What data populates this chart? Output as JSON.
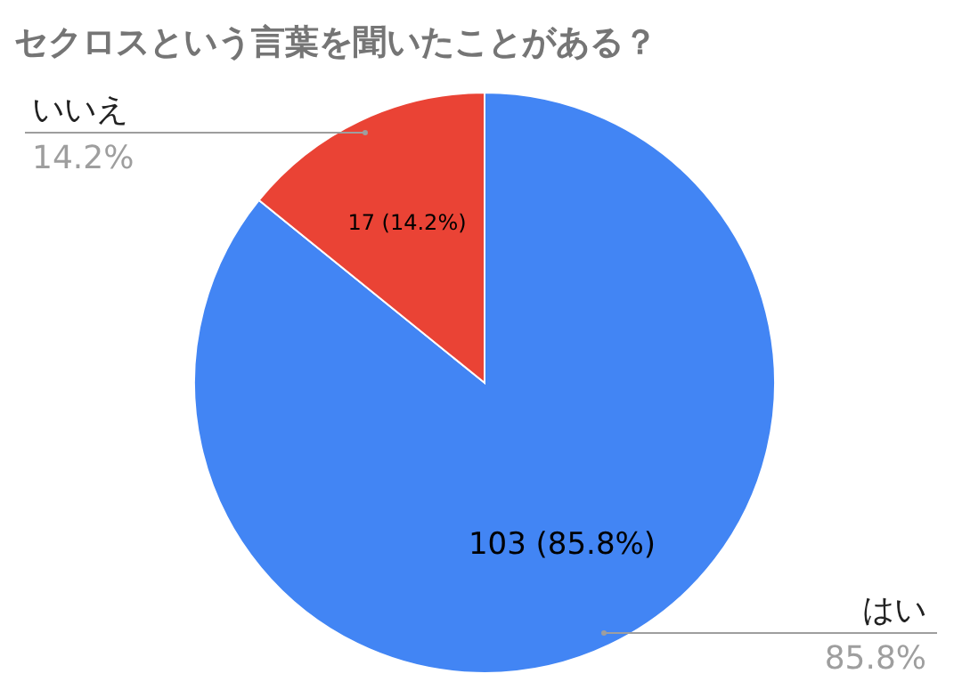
{
  "chart_data": {
    "type": "pie",
    "title": "セクロスという言葉を聞いたことがある？",
    "categories": [
      "はい",
      "いいえ"
    ],
    "values": [
      103,
      17
    ],
    "colors": [
      "#4285f4",
      "#ea4335"
    ],
    "value_labels": [
      "103 (85.8%)",
      "17 (14.2%)"
    ],
    "annotations": [
      {
        "text": "85.8%",
        "x": "はい"
      },
      {
        "text": "14.2%",
        "x": "いいえ"
      }
    ]
  }
}
